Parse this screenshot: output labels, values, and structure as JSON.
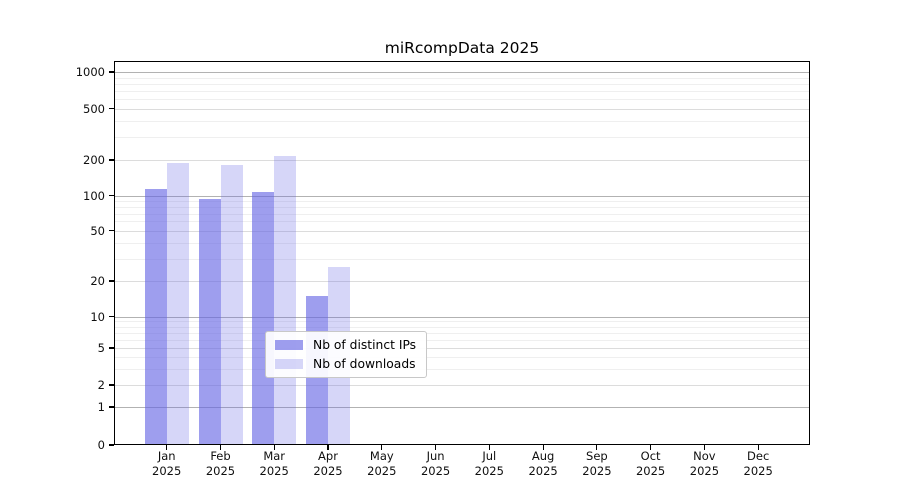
{
  "chart_data": {
    "type": "bar",
    "title": "miRcompData 2025",
    "x_months": [
      "Jan",
      "Feb",
      "Mar",
      "Apr",
      "May",
      "Jun",
      "Jul",
      "Aug",
      "Sep",
      "Oct",
      "Nov",
      "Dec"
    ],
    "x_year": "2025",
    "categories": [
      "Jan 2025",
      "Feb 2025",
      "Mar 2025",
      "Apr 2025",
      "May 2025",
      "Jun 2025",
      "Jul 2025",
      "Aug 2025",
      "Sep 2025",
      "Oct 2025",
      "Nov 2025",
      "Dec 2025"
    ],
    "series": [
      {
        "name": "Nb of distinct IPs",
        "color": "rgba(98,98,228,0.62)",
        "values": [
          113,
          93,
          108,
          15,
          null,
          null,
          null,
          null,
          null,
          null,
          null,
          null
        ]
      },
      {
        "name": "Nb of downloads",
        "color": "rgba(98,98,228,0.26)",
        "values": [
          189,
          181,
          215,
          26,
          null,
          null,
          null,
          null,
          null,
          null,
          null,
          null
        ]
      }
    ],
    "y_axis": {
      "ticks": [
        0,
        1,
        2,
        5,
        10,
        20,
        50,
        100,
        200,
        500,
        1000
      ],
      "minor_gridlines": [
        3,
        4,
        6,
        7,
        8,
        9,
        30,
        40,
        60,
        70,
        80,
        90,
        300,
        400,
        600,
        700,
        800,
        900
      ],
      "scale": "log-like with zero baseline"
    },
    "legend_position": "bottom-center-inside",
    "grid": true,
    "colors": {
      "grid_pow10": "#b2b2b2",
      "grid_labeled": "#dcdcdc",
      "grid_minor": "#efefef",
      "axis": "#000000"
    }
  }
}
